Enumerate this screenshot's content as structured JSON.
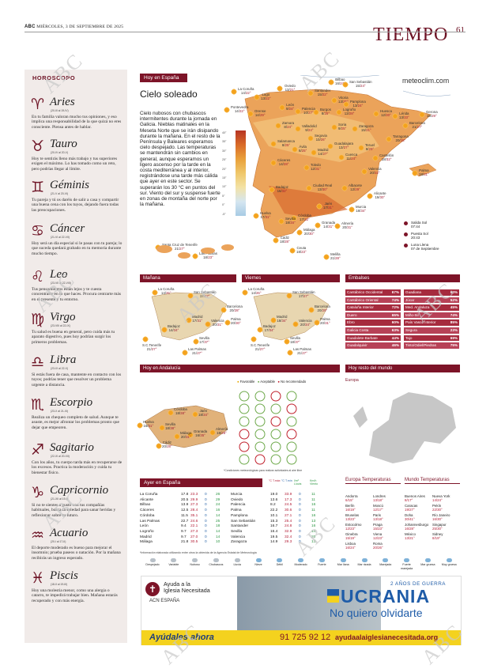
{
  "header": {
    "brand": "ABC",
    "date": "MIÉRCOLES, 3 DE SEPTIEMBRE DE 2025",
    "section": "TIEMPO",
    "page": "61"
  },
  "watermark": "ABC",
  "horoscope": {
    "title": "HOROSCOPO",
    "signs": [
      {
        "icon": "aries-icon",
        "glyph": "♈",
        "name": "Aries",
        "dates": "(20-III al 19-IV)",
        "text": "En tu familia valoran mucho tus opiniones, y eso implica una responsabilidad de la que quizá no eres consciente. Piensa antes de hablar."
      },
      {
        "icon": "taurus-icon",
        "glyph": "♉",
        "name": "Tauro",
        "dates": "(20-IV al 20-V)",
        "text": "Hoy te sentirás lleno más trabajo y tus superiores exigen el máximo. Lo has tomado como un reto, pero podrías llegar al límite."
      },
      {
        "icon": "gemini-icon",
        "glyph": "♊",
        "name": "Géminis",
        "dates": "(21-V al 20-VI)",
        "text": "Tu pareja y tú os daréis de salir a casa y compartir una buena cena con los tuyos, dejando fuera todas las preocupaciones."
      },
      {
        "icon": "cancer-icon",
        "glyph": "♋",
        "name": "Cáncer",
        "dates": "(21-VI al 22-VII)",
        "text": "Hoy será un día especial si le pasas con tu pareja; lo que suceda quedará grabado en tu memoria durante mucho tiempo."
      },
      {
        "icon": "leo-icon",
        "glyph": "♌",
        "name": "Leo",
        "dates": "(23-VII al 22-VIII)",
        "text": "Tus pensamientos están lejos y te cuesta concentrarte en lo que haces. Procura centrarte más en el presente y tu entorno."
      },
      {
        "icon": "virgo-icon",
        "glyph": "♍",
        "name": "Virgo",
        "dates": "(23-VIII al 22-IX)",
        "text": "Tu salud es buena en general, pero cuida más tu aparato digestivo, pues hoy podrían surgir los primeros problemas."
      },
      {
        "icon": "libra-icon",
        "glyph": "♎",
        "name": "Libra",
        "dates": "(23-IX al 22-X)",
        "text": "Si estás fuera de casa, mantente en contacto con los tuyos; podrías tener que resolver un problema urgente a distancia."
      },
      {
        "icon": "scorpio-icon",
        "glyph": "♏",
        "name": "Escorpio",
        "dates": "(23-X al 21-XI)",
        "text": "Realiza un chequeo completo de salud. Aunque te asuste, es mejor afrontar los problemas pronto que dejar que empeoren."
      },
      {
        "icon": "sagittarius-icon",
        "glyph": "♐",
        "name": "Sagitario",
        "dates": "(22-XI al 20-XII)",
        "text": "Con los años, tu cuerpo tarda más en recuperarse de los excesos. Practica la moderación y cuida tu bienestar físico."
      },
      {
        "icon": "capricorn-icon",
        "glyph": "♑",
        "name": "Capricornio",
        "dates": "(21-XII al 19-I)",
        "text": "Si no te sientes a gusto con tus compañías habituales, busca la soledad para sanar heridas y reflexionar sobre tu futuro."
      },
      {
        "icon": "aquarius-icon",
        "glyph": "♒",
        "name": "Acuario",
        "dates": "(20-I al 17-II)",
        "text": "El deporte moderado es bueno para mejorar el insomnio; prueba paseos o natación. Por la mañana recibirás un ingreso esperado."
      },
      {
        "icon": "pisces-icon",
        "glyph": "♓",
        "name": "Piscis",
        "dates": "(18-II al 19-III)",
        "text": "Hoy una molestia menor, como una alergia o catarro, te impedirá trabajar bien. Mañana estarás recuperado y con más energía."
      }
    ]
  },
  "hoy_espana": {
    "ribbon": "Hoy en España",
    "site": "meteoclim.com",
    "title": "Cielo soleado",
    "text": "Cielo nubosos con chubascos intermitentes durante la jornada en Galicia. Nieblas matinales en la Meseta Norte que se irán disipando durante la mañana. En el resto de la Península y Baleares esperamos cielo despejado. Las temperaturas se mantendrán sin cambios en general, aunque esperamos un ligero ascenso por la tarde en la costa mediterránea y al interior, registrándose una tarde más cálida que ayer en este sector. Se superarán los 30 °C en puntos del sur. Viento del sur y suspense fuerte en zonas de montaña del norte por la mañana.",
    "scale": [
      "40°",
      "35°",
      "30°",
      "25°",
      "20°",
      "15°",
      "10°",
      "5°",
      "0°",
      "-5°"
    ],
    "cities": [
      {
        "name": "La Coruña",
        "t": "14/",
        "tmax": "22°"
      },
      {
        "name": "Lugo",
        "t": "13/",
        "tmax": "22°"
      },
      {
        "name": "Oviedo",
        "t": "13/",
        "tmax": "21°"
      },
      {
        "name": "Santander",
        "t": "15/",
        "tmax": "22°"
      },
      {
        "name": "Bilbao",
        "t": "16/",
        "tmax": "24°"
      },
      {
        "name": "San Sebastián",
        "t": "15/",
        "tmax": "24°"
      },
      {
        "name": "Vitoria",
        "t": "13/",
        "tmax": "25°"
      },
      {
        "name": "Pamplona",
        "t": "13/",
        "tmax": "24°"
      },
      {
        "name": "Huesca",
        "t": "12/",
        "tmax": "30°"
      },
      {
        "name": "Lérida",
        "t": "13/",
        "tmax": "33°"
      },
      {
        "name": "Gerona",
        "t": "15/",
        "tmax": "29°"
      },
      {
        "name": "Barcelona",
        "t": "21/",
        "tmax": "27°"
      },
      {
        "name": "Pontevedra",
        "t": "14/",
        "tmax": "22°"
      },
      {
        "name": "Orense",
        "t": "14/",
        "tmax": "29°"
      },
      {
        "name": "León",
        "t": "9/",
        "tmax": "24°"
      },
      {
        "name": "Palencia",
        "t": "10/",
        "tmax": "27°"
      },
      {
        "name": "Burgos",
        "t": "8/",
        "tmax": "25°"
      },
      {
        "name": "Logroño",
        "t": "13/",
        "tmax": "28°"
      },
      {
        "name": "Zaragoza",
        "t": "15/",
        "tmax": "31°"
      },
      {
        "name": "Tarragona",
        "t": "20/",
        "tmax": "28°"
      },
      {
        "name": "Zamora",
        "t": "8/",
        "tmax": "24°"
      },
      {
        "name": "Valladolid",
        "t": "9/",
        "tmax": "24°"
      },
      {
        "name": "Soria",
        "t": "9/",
        "tmax": "25°"
      },
      {
        "name": "Teruel",
        "t": "8/",
        "tmax": "29°"
      },
      {
        "name": "Castellón",
        "t": "18/",
        "tmax": "32°"
      },
      {
        "name": "Salamanca",
        "t": "8/",
        "tmax": "25°"
      },
      {
        "name": "Segovia",
        "t": "10/",
        "tmax": "26°"
      },
      {
        "name": "Ávila",
        "t": "8/",
        "tmax": "25°"
      },
      {
        "name": "Guadalajara",
        "t": "13/",
        "tmax": "27°"
      },
      {
        "name": "Madrid",
        "t": "14/",
        "tmax": "27°"
      },
      {
        "name": "Cuenca",
        "t": "11/",
        "tmax": "24°"
      },
      {
        "name": "Valencia",
        "t": "20/",
        "tmax": "32°"
      },
      {
        "name": "Palma",
        "t": "18/",
        "tmax": "31°"
      },
      {
        "name": "Cáceres",
        "t": "14/",
        "tmax": "28°"
      },
      {
        "name": "Toledo",
        "t": "12/",
        "tmax": "31°"
      },
      {
        "name": "Ciudad Real",
        "t": "13/",
        "tmax": "30°"
      },
      {
        "name": "Albacete",
        "t": "12/",
        "tmax": "29°"
      },
      {
        "name": "Alicante",
        "t": "19/",
        "tmax": "30°"
      },
      {
        "name": "Badajoz",
        "t": "16/",
        "tmax": "32°"
      },
      {
        "name": "Jaén",
        "t": "17/",
        "tmax": "31°"
      },
      {
        "name": "Murcia",
        "t": "18/",
        "tmax": "34°"
      },
      {
        "name": "Córdoba",
        "t": "17/",
        "tmax": "32°"
      },
      {
        "name": "Huelva",
        "t": "17/",
        "tmax": "31°"
      },
      {
        "name": "Sevilla",
        "t": "18/",
        "tmax": "34°"
      },
      {
        "name": "Granada",
        "t": "14/",
        "tmax": "31°"
      },
      {
        "name": "Almería",
        "t": "20/",
        "tmax": "31°"
      },
      {
        "name": "Málaga",
        "t": "20/",
        "tmax": "30°"
      },
      {
        "name": "Cádiz",
        "t": "18/",
        "tmax": "28°"
      },
      {
        "name": "Ceuta",
        "t": "18/",
        "tmax": "23°"
      },
      {
        "name": "Melilla",
        "t": "21/",
        "tmax": "28°"
      },
      {
        "name": "Santa Cruz de Tenerife",
        "t": "21/",
        "tmax": "27°"
      },
      {
        "name": "Las Palmas",
        "t": "18/",
        "tmax": "23°"
      }
    ],
    "sun": [
      {
        "label": "Salida Sol",
        "value": "07:44"
      },
      {
        "label": "Puesta Sol",
        "value": "20:43"
      },
      {
        "label": "Luna Llena",
        "value": "07 de Septiembre"
      }
    ]
  },
  "manana": {
    "ribbon": "Mañana",
    "cities": [
      {
        "name": "La Coruña",
        "t": "14/",
        "tmax": "26°"
      },
      {
        "name": "San Sebastián",
        "t": "17/",
        "tmax": "27°"
      },
      {
        "name": "Barcelona",
        "t": "20/",
        "tmax": "28°"
      },
      {
        "name": "Madrid",
        "t": "17/",
        "tmax": "31°"
      },
      {
        "name": "Valencia",
        "t": "20/",
        "tmax": "31°"
      },
      {
        "name": "Palma",
        "t": "20/",
        "tmax": "30°"
      },
      {
        "name": "Badajoz",
        "t": "14/",
        "tmax": "34°"
      },
      {
        "name": "Sevilla",
        "t": "17/",
        "tmax": "37°"
      },
      {
        "name": "S.C.Tenerife",
        "t": "21/",
        "tmax": "27°"
      },
      {
        "name": "Las Palmas",
        "t": "21/",
        "tmax": "27°"
      }
    ]
  },
  "viernes": {
    "ribbon": "Viernes",
    "cities": [
      {
        "name": "La Coruña",
        "t": "14/",
        "tmax": "26°"
      },
      {
        "name": "San Sebastián",
        "t": "17/",
        "tmax": "27°"
      },
      {
        "name": "Barcelona",
        "t": "20/",
        "tmax": "29°"
      },
      {
        "name": "Madrid",
        "t": "18/",
        "tmax": "34°"
      },
      {
        "name": "Valencia",
        "t": "20/",
        "tmax": "34°"
      },
      {
        "name": "Palma",
        "t": "20/",
        "tmax": "31°"
      },
      {
        "name": "Badajoz",
        "t": "17/",
        "tmax": "34°"
      },
      {
        "name": "Sevilla",
        "t": "18/",
        "tmax": "37°"
      },
      {
        "name": "S.C.Tenerife",
        "t": "21/",
        "tmax": "27°"
      },
      {
        "name": "Las Palmas",
        "t": "21/",
        "tmax": "27°"
      }
    ]
  },
  "embalses": {
    "ribbon": "Embalses",
    "items": [
      {
        "name": "Cantábrico Occidental",
        "pct": "67%"
      },
      {
        "name": "Guadiana",
        "pct": "60%"
      },
      {
        "name": "Cantábrico Oriental",
        "pct": "74%"
      },
      {
        "name": "Júcar",
        "pct": "52%"
      },
      {
        "name": "Cataluña Interior",
        "pct": "72%"
      },
      {
        "name": "Med. Andaluza",
        "pct": "45%"
      },
      {
        "name": "Duero",
        "pct": "65%"
      },
      {
        "name": "Miño-Sil",
        "pct": "74%"
      },
      {
        "name": "Ebro",
        "pct": "60%"
      },
      {
        "name": "País Vasco Interior",
        "pct": "85%"
      },
      {
        "name": "Galicia Costa",
        "pct": "63%"
      },
      {
        "name": "Segura",
        "pct": "23%"
      },
      {
        "name": "Guadalete-Barbate",
        "pct": "44%"
      },
      {
        "name": "Tajo",
        "pct": "69%"
      },
      {
        "name": "Guadalquivir",
        "pct": "46%"
      },
      {
        "name": "Tinto/Odiel/Piedras",
        "pct": "75%"
      }
    ]
  },
  "andalucia": {
    "ribbon": "Hoy en Andalucía",
    "legend": [
      "Favorable",
      "Aceptable",
      "No recomendado"
    ],
    "note": "*Condiciones meteorológicas para realizar actividades al aire libre",
    "cities": [
      {
        "name": "Córdoba",
        "t": "18/",
        "tmax": "38°"
      },
      {
        "name": "Jaén",
        "t": "18/",
        "tmax": "34°"
      },
      {
        "name": "Huelva",
        "t": "16/",
        "tmax": "31°"
      },
      {
        "name": "Sevilla",
        "t": "18/",
        "tmax": "38°"
      },
      {
        "name": "Granada",
        "t": "16/",
        "tmax": "35°"
      },
      {
        "name": "Almería",
        "t": "19/",
        "tmax": "28°"
      },
      {
        "name": "Málaga",
        "t": "20/",
        "tmax": "31°"
      },
      {
        "name": "Cádiz",
        "t": "20/",
        "tmax": "28°"
      }
    ]
  },
  "mundo": {
    "ribbon": "Hoy resto del mundo",
    "europe_label": "Europa"
  },
  "ayer": {
    "ribbon": "Ayer en España",
    "headers": [
      "°C T.máx",
      "°C T.mín",
      "l/m² Lluvia",
      "Km/h Viento"
    ],
    "rows": [
      {
        "city": "La Coruña",
        "max": "17.8",
        "min": "23.3",
        "ll": "0",
        "v": "26"
      },
      {
        "city": "Alicante",
        "max": "20.5",
        "min": "29.9",
        "ll": "0",
        "v": "29"
      },
      {
        "city": "Bilbao",
        "max": "13.9",
        "min": "27.3",
        "ll": "0",
        "v": "24"
      },
      {
        "city": "Cáceres",
        "max": "12.5",
        "min": "28.4",
        "ll": "0",
        "v": "16"
      },
      {
        "city": "Córdoba",
        "max": "11.5",
        "min": "35.1",
        "ll": "0",
        "v": "14"
      },
      {
        "city": "Las Palmas",
        "max": "22.7",
        "min": "24.6",
        "ll": "0",
        "v": "25"
      },
      {
        "city": "León",
        "max": "9.4",
        "min": "22.1",
        "ll": "0",
        "v": "18"
      },
      {
        "city": "Logroño",
        "max": "9.7",
        "min": "27.3",
        "ll": "0",
        "v": "14"
      },
      {
        "city": "Madrid",
        "max": "9.7",
        "min": "27.0",
        "ll": "0",
        "v": "14"
      },
      {
        "city": "Málaga",
        "max": "21.8",
        "min": "30.5",
        "ll": "0",
        "v": "10"
      },
      {
        "city": "Murcia",
        "max": "19.0",
        "min": "33.9",
        "ll": "0",
        "v": "11"
      },
      {
        "city": "Oviedo",
        "max": "13.6",
        "min": "17.3",
        "ll": "0",
        "v": "11"
      },
      {
        "city": "Palencia",
        "max": "8.2",
        "min": "24.5",
        "ll": "0",
        "v": "16"
      },
      {
        "city": "Palma",
        "max": "22.2",
        "min": "30.6",
        "ll": "0",
        "v": "11"
      },
      {
        "city": "Pamplona",
        "max": "10.1",
        "min": "27.1",
        "ll": "0",
        "v": "16"
      },
      {
        "city": "San Sebastián",
        "max": "15.3",
        "min": "25.4",
        "ll": "0",
        "v": "13"
      },
      {
        "city": "Santander",
        "max": "16.7",
        "min": "24.8",
        "ll": "0",
        "v": "16"
      },
      {
        "city": "Sevilla",
        "max": "16.4",
        "min": "32.9",
        "ll": "0",
        "v": "14"
      },
      {
        "city": "Valencia",
        "max": "19.5",
        "min": "32.4",
        "ll": "0",
        "v": "20"
      },
      {
        "city": "Zaragoza",
        "max": "14.9",
        "min": "29.3",
        "ll": "0",
        "v": "13"
      }
    ],
    "note": "*Información elaborada utilizando entre otros la obtenida de la Agencia Estatal de Meteorología"
  },
  "temps_world": {
    "europe_title": "Europa Temperaturas",
    "world_title": "Mundo Temperaturas",
    "europe": [
      {
        "c": "Andorra",
        "v": "6/15°"
      },
      {
        "c": "Londres",
        "v": "13/18°"
      },
      {
        "c": "Berlín",
        "v": "16/19°"
      },
      {
        "c": "Moscú",
        "v": "12/17°"
      },
      {
        "c": "Bruselas",
        "v": "13/23°"
      },
      {
        "c": "Paris",
        "v": "13/18°"
      },
      {
        "c": "Estocolmo",
        "v": "12/23°"
      },
      {
        "c": "Praga",
        "v": "15/23°"
      },
      {
        "c": "Ginebra",
        "v": "15/19°"
      },
      {
        "c": "Viena",
        "v": "12/23°"
      },
      {
        "c": "Lisboa",
        "v": "16/24°"
      },
      {
        "c": "Roma",
        "v": "20/26°"
      }
    ],
    "world": [
      {
        "c": "Buenos Aires",
        "v": "8/17°"
      },
      {
        "c": "Nueva York",
        "v": "14/24°"
      },
      {
        "c": "Caracas",
        "v": "19/27°"
      },
      {
        "c": "Pekín",
        "v": "22/30°"
      },
      {
        "c": "Doha",
        "v": "30/41°"
      },
      {
        "c": "Río Janeiro",
        "v": "16/30°"
      },
      {
        "c": "Johannesburgo",
        "v": "16/28°"
      },
      {
        "c": "Singapur",
        "v": "25/30°"
      },
      {
        "c": "México",
        "v": "13/21°"
      },
      {
        "c": "Sidney",
        "v": "8/19°"
      }
    ]
  },
  "legend_icons": [
    "Despejado",
    "Variable",
    "Nuboso",
    "Chubascos",
    "Lluvia",
    "Nieve",
    "Débil",
    "Moderado",
    "Fuerte",
    "Mar llana",
    "Mar rizada",
    "Marejada",
    "Fuerte marejada",
    "Mar gruesa",
    "Muy gruesa"
  ],
  "ad": {
    "org1": "Ayuda a la",
    "org2": "Iglesia Necesitada",
    "org3": "ACN ESPAÑA",
    "badge": "2 AÑOS DE GUERRA",
    "country": "UCRANIA",
    "slogan": "No quiero olvidarte",
    "cta": "Ayúdales ahora",
    "phone": "91 725 92 12",
    "url": "ayudaalaiglesianecesitada.org",
    "colors": {
      "blue": "#1f5ca8",
      "yellow": "#f4d21e",
      "accent": "#7d1428"
    }
  }
}
